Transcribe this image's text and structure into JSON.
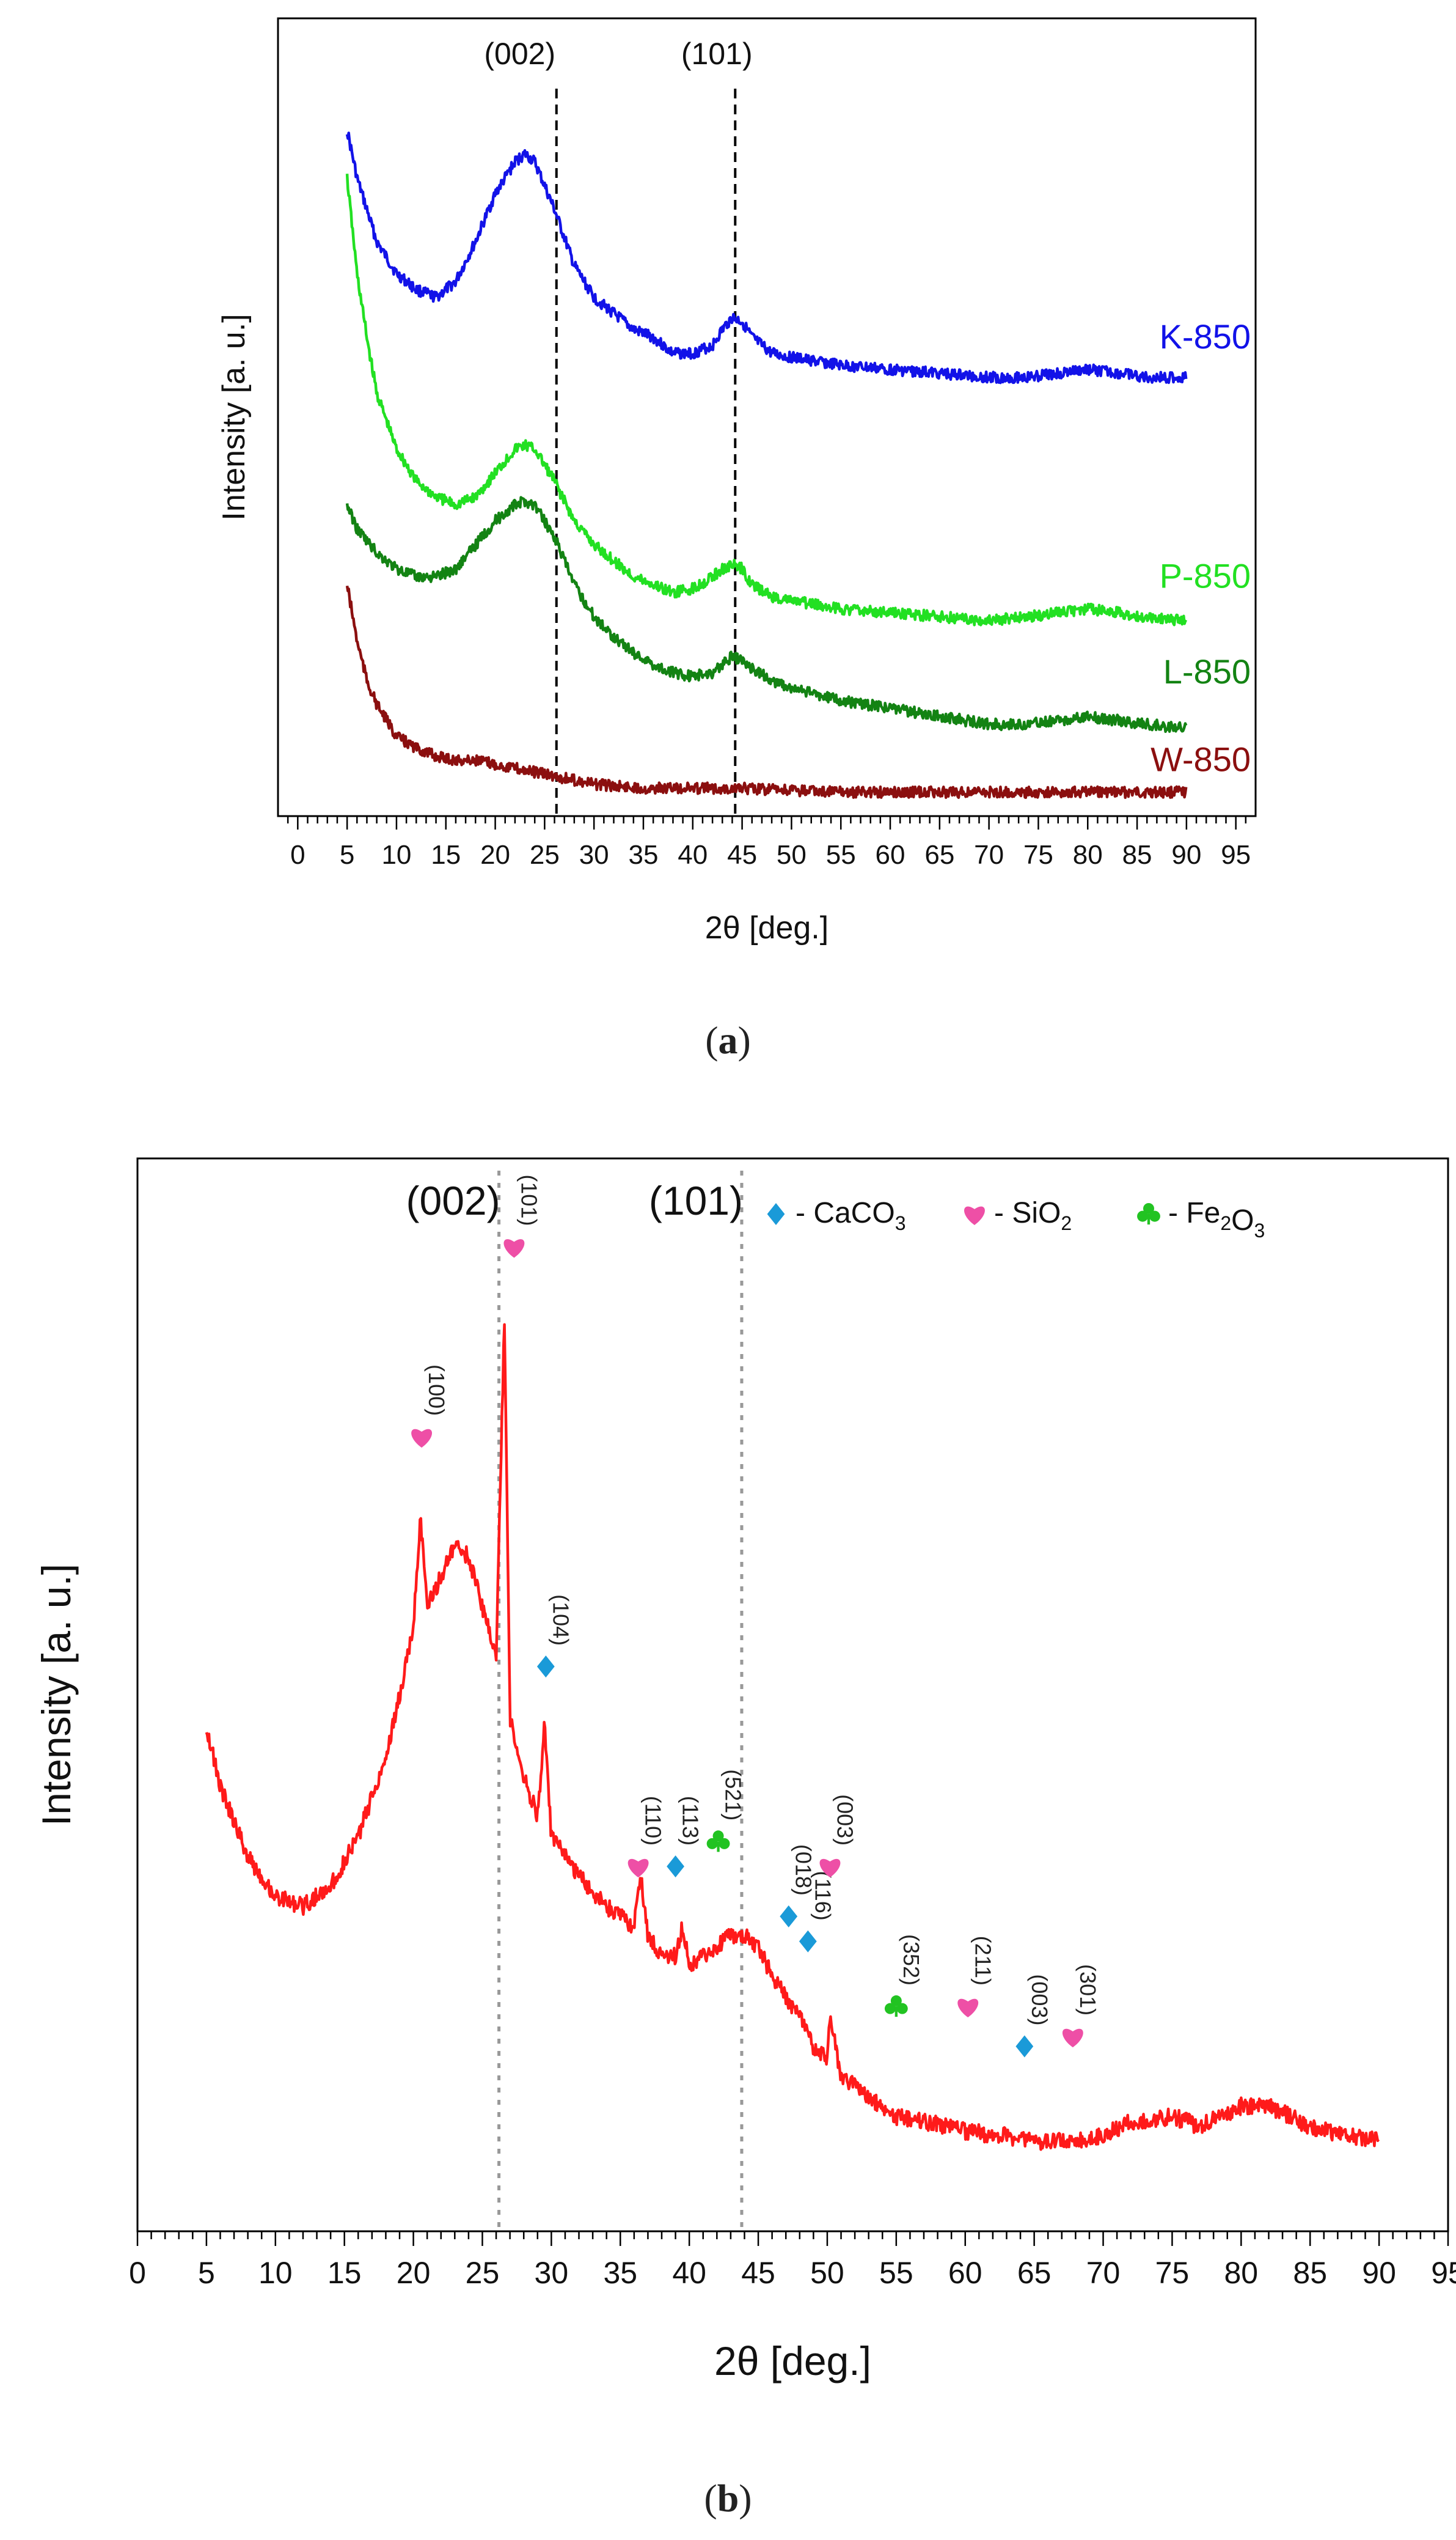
{
  "figure": {
    "caption_a": "a",
    "caption_b": "b"
  },
  "chart_data": [
    {
      "type": "line",
      "panel": "a",
      "xlabel": "2θ [deg.]",
      "ylabel": "Intensity [a. u.]",
      "xlim": [
        -2,
        97
      ],
      "xticks": [
        0,
        5,
        10,
        15,
        20,
        25,
        30,
        35,
        40,
        45,
        50,
        55,
        60,
        65,
        70,
        75,
        80,
        85,
        90,
        95
      ],
      "reference_lines": [
        {
          "label": "(002)",
          "x": 26.2
        },
        {
          "label": "(101)",
          "x": 44.3
        }
      ],
      "series": [
        {
          "name": "K-850",
          "color": "#1212e8",
          "x": [
            5,
            6,
            8,
            10,
            12,
            14,
            16,
            18,
            20,
            22,
            23,
            24,
            26,
            28,
            30,
            32,
            34,
            36,
            38,
            40,
            42,
            43,
            44,
            45,
            46,
            48,
            50,
            55,
            60,
            65,
            70,
            74,
            77,
            80,
            83,
            86,
            90
          ],
          "y": [
            0.86,
            0.8,
            0.72,
            0.68,
            0.66,
            0.65,
            0.67,
            0.72,
            0.78,
            0.82,
            0.83,
            0.82,
            0.76,
            0.69,
            0.65,
            0.63,
            0.61,
            0.6,
            0.58,
            0.58,
            0.59,
            0.61,
            0.625,
            0.62,
            0.6,
            0.58,
            0.575,
            0.565,
            0.56,
            0.555,
            0.55,
            0.55,
            0.555,
            0.56,
            0.555,
            0.55,
            0.55
          ]
        },
        {
          "name": "P-850",
          "color": "#22e022",
          "x": [
            5,
            6,
            7,
            8,
            10,
            12,
            14,
            16,
            18,
            20,
            22,
            23,
            24,
            26,
            28,
            30,
            32,
            34,
            36,
            38,
            40,
            42,
            43,
            44,
            45,
            46,
            48,
            50,
            55,
            60,
            65,
            70,
            74,
            77,
            80,
            83,
            86,
            90
          ],
          "y": [
            0.8,
            0.68,
            0.6,
            0.53,
            0.46,
            0.42,
            0.4,
            0.39,
            0.4,
            0.43,
            0.46,
            0.465,
            0.46,
            0.42,
            0.37,
            0.34,
            0.32,
            0.3,
            0.29,
            0.28,
            0.285,
            0.3,
            0.31,
            0.315,
            0.31,
            0.29,
            0.275,
            0.27,
            0.26,
            0.255,
            0.25,
            0.245,
            0.25,
            0.255,
            0.26,
            0.255,
            0.25,
            0.245
          ]
        },
        {
          "name": "L-850",
          "color": "#138313",
          "x": [
            5,
            6,
            8,
            10,
            12,
            14,
            16,
            18,
            20,
            22,
            23,
            24,
            26,
            28,
            30,
            32,
            34,
            36,
            38,
            40,
            42,
            43,
            44,
            45,
            46,
            48,
            50,
            55,
            60,
            65,
            70,
            74,
            77,
            80,
            83,
            86,
            90
          ],
          "y": [
            0.39,
            0.36,
            0.33,
            0.31,
            0.3,
            0.3,
            0.31,
            0.34,
            0.37,
            0.39,
            0.395,
            0.39,
            0.35,
            0.29,
            0.25,
            0.225,
            0.205,
            0.19,
            0.18,
            0.175,
            0.18,
            0.19,
            0.2,
            0.195,
            0.185,
            0.17,
            0.16,
            0.145,
            0.135,
            0.125,
            0.115,
            0.115,
            0.12,
            0.125,
            0.12,
            0.115,
            0.11
          ]
        },
        {
          "name": "W-850",
          "color": "#8b0f0f",
          "x": [
            5,
            6,
            7,
            8,
            10,
            12,
            14,
            16,
            18,
            20,
            22,
            24,
            26,
            28,
            30,
            35,
            40,
            45,
            50,
            55,
            60,
            70,
            80,
            90
          ],
          "y": [
            0.29,
            0.22,
            0.17,
            0.14,
            0.1,
            0.085,
            0.075,
            0.07,
            0.07,
            0.065,
            0.06,
            0.055,
            0.05,
            0.045,
            0.04,
            0.035,
            0.035,
            0.035,
            0.032,
            0.03,
            0.03,
            0.03,
            0.03,
            0.03
          ]
        }
      ]
    },
    {
      "type": "line",
      "panel": "b",
      "xlabel": "2θ [deg.]",
      "ylabel": "Intensity [a. u.]",
      "xlim": [
        0,
        95
      ],
      "xticks": [
        0,
        5,
        10,
        15,
        20,
        25,
        30,
        35,
        40,
        45,
        50,
        55,
        60,
        65,
        70,
        75,
        80,
        85,
        90,
        95
      ],
      "reference_lines": [
        {
          "label": "(002)",
          "x": 26.2
        },
        {
          "label": "(101)",
          "x": 43.8
        }
      ],
      "legend": [
        {
          "symbol": "diamond",
          "color": "#1a9ad8",
          "text": "- CaCO",
          "sub": "3"
        },
        {
          "symbol": "heart",
          "color": "#ee4fa6",
          "text": "- SiO",
          "sub": "2"
        },
        {
          "symbol": "club",
          "color": "#22c322",
          "text": "- Fe",
          "sub": "2",
          "text2": "O",
          "sub2": "3"
        }
      ],
      "series": [
        {
          "name": "sample",
          "color": "#ff1a1a",
          "x": [
            5,
            6,
            8,
            10,
            12,
            14,
            16,
            18,
            19,
            20,
            20.5,
            21,
            22,
            23,
            24,
            25,
            26,
            26.6,
            27,
            28,
            29,
            29.5,
            30,
            32,
            34,
            36,
            36.5,
            37,
            38,
            39,
            39.5,
            40,
            41,
            42,
            43,
            44,
            45,
            46,
            47,
            48,
            49,
            50,
            50.2,
            51,
            53,
            55,
            57,
            60,
            63,
            65,
            68,
            70,
            72,
            75,
            77,
            80,
            82,
            85,
            88,
            90
          ],
          "y": [
            0.45,
            0.39,
            0.32,
            0.28,
            0.27,
            0.29,
            0.34,
            0.42,
            0.48,
            0.55,
            0.66,
            0.57,
            0.6,
            0.63,
            0.62,
            0.57,
            0.52,
            0.86,
            0.46,
            0.4,
            0.36,
            0.45,
            0.34,
            0.3,
            0.27,
            0.25,
            0.3,
            0.24,
            0.22,
            0.22,
            0.25,
            0.21,
            0.22,
            0.23,
            0.24,
            0.24,
            0.23,
            0.2,
            0.18,
            0.16,
            0.13,
            0.12,
            0.16,
            0.1,
            0.08,
            0.06,
            0.055,
            0.045,
            0.04,
            0.035,
            0.035,
            0.04,
            0.055,
            0.06,
            0.05,
            0.07,
            0.07,
            0.05,
            0.04,
            0.035
          ]
        }
      ],
      "annotations": [
        {
          "hkl": "(100)",
          "phase": "SiO2",
          "x": 20.6,
          "y": 0.74
        },
        {
          "hkl": "(101)",
          "phase": "SiO2",
          "x": 27.3,
          "y": 0.93
        },
        {
          "hkl": "(104)",
          "phase": "CaCO3",
          "x": 29.6,
          "y": 0.51
        },
        {
          "hkl": "(110)",
          "phase": "SiO2",
          "x": 36.3,
          "y": 0.31
        },
        {
          "hkl": "(113)",
          "phase": "CaCO3",
          "x": 39.0,
          "y": 0.31
        },
        {
          "hkl": "(521)",
          "phase": "Fe2O3",
          "x": 42.1,
          "y": 0.335
        },
        {
          "hkl": "(018)",
          "phase": "CaCO3",
          "x": 47.2,
          "y": 0.26
        },
        {
          "hkl": "(116)",
          "phase": "CaCO3",
          "x": 48.6,
          "y": 0.235
        },
        {
          "hkl": "(003)",
          "phase": "SiO2",
          "x": 50.2,
          "y": 0.31
        },
        {
          "hkl": "(352)",
          "phase": "Fe2O3",
          "x": 55.0,
          "y": 0.17
        },
        {
          "hkl": "(211)",
          "phase": "SiO2",
          "x": 60.2,
          "y": 0.17
        },
        {
          "hkl": "(003)",
          "phase": "CaCO3",
          "x": 64.3,
          "y": 0.13
        },
        {
          "hkl": "(301)",
          "phase": "SiO2",
          "x": 67.8,
          "y": 0.14
        }
      ]
    }
  ]
}
